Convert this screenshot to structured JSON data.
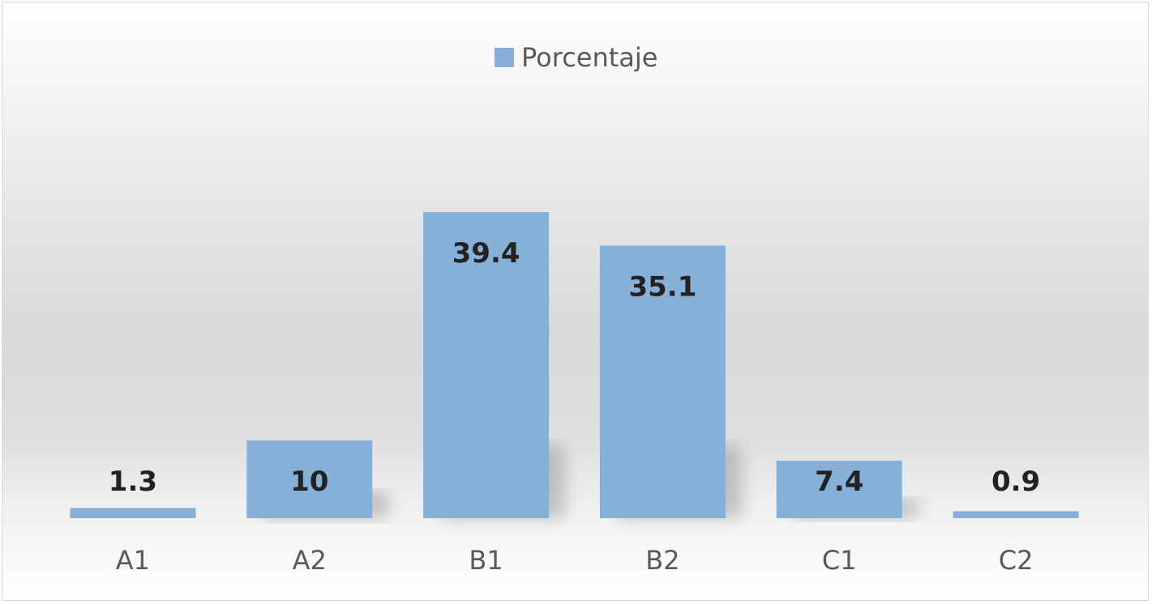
{
  "chart_data": {
    "type": "bar",
    "categories": [
      "A1",
      "A2",
      "B1",
      "B2",
      "C1",
      "C2"
    ],
    "series": [
      {
        "name": "Porcentaje",
        "values": [
          1.3,
          10,
          39.4,
          35.1,
          7.4,
          0.9
        ],
        "color": "#87b0d9"
      }
    ],
    "data_labels": [
      "1.3",
      "10",
      "39.4",
      "35.1",
      "7.4",
      "0.9"
    ],
    "title": "",
    "xlabel": "",
    "ylabel": "",
    "ylim": [
      0,
      39.4
    ],
    "legend_position": "top-center",
    "grid": false
  }
}
